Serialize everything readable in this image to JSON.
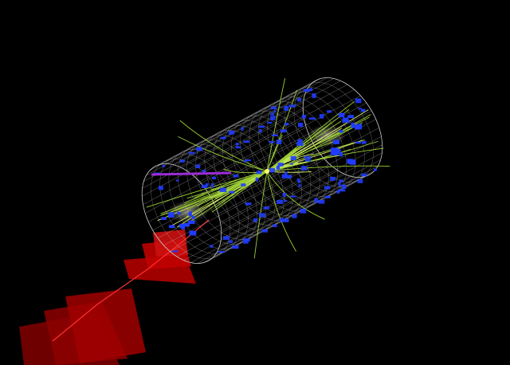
{
  "scene": {
    "background": "#000000",
    "colors": {
      "detector_mesh": "#c9c9c9",
      "tracks": "#9acd32",
      "track_highlight": "#d8f070",
      "calorimeter_hits": "#1f3cff",
      "muon_chambers": "#c00000",
      "muon_track": "#ff3030",
      "electron": "#9b2cd6",
      "jet_cone": "#e8e8c8",
      "vertex": "#ffff66"
    }
  }
}
